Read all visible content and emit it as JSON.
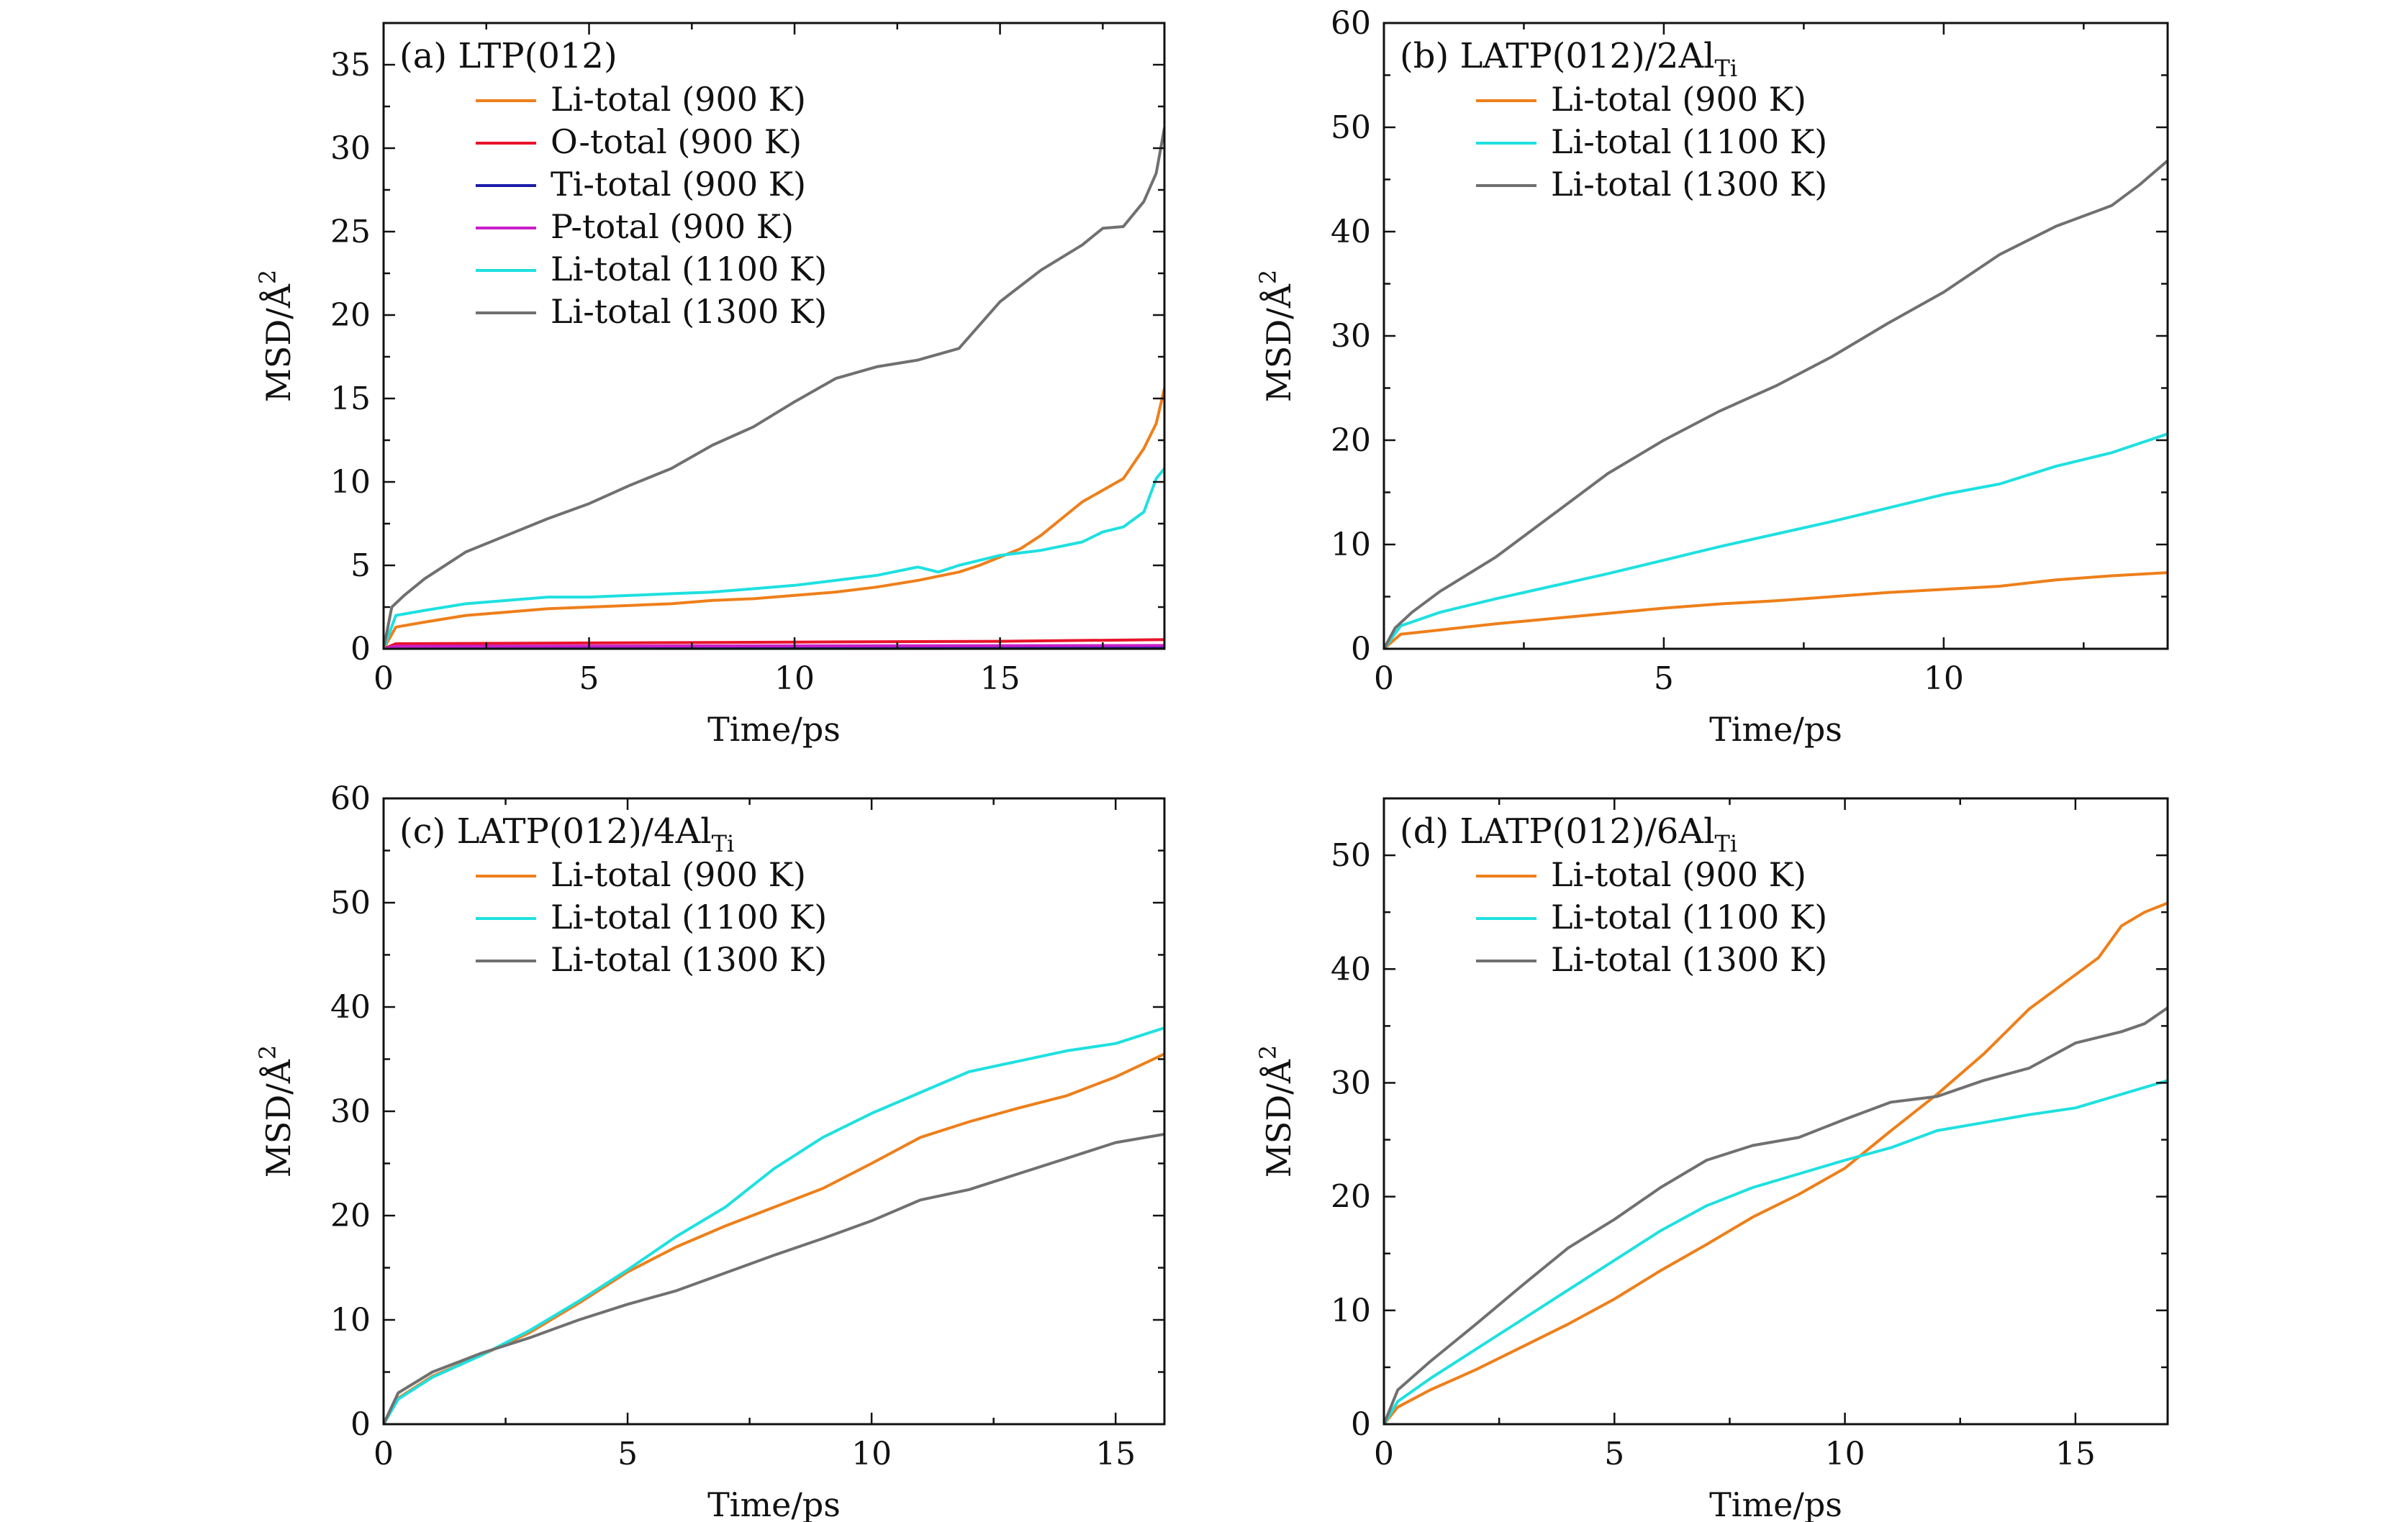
{
  "figure": {
    "panels": [
      "a",
      "b",
      "c",
      "d"
    ]
  },
  "chart_data": [
    {
      "id": "a",
      "type": "line",
      "panel_label": "(a)",
      "title_main": "LTP(012)",
      "title_sub": "",
      "xlabel": "Time/ps",
      "ylabel_main": "MSD/Å",
      "ylabel_sup": "2",
      "xlim": [
        0,
        19
      ],
      "ylim": [
        0,
        37.5
      ],
      "xticks": [
        0,
        5,
        10,
        15
      ],
      "yticks": [
        0,
        5,
        10,
        15,
        20,
        25,
        30,
        35
      ],
      "legend_position": "top-left",
      "series": [
        {
          "name": "Li-total (900 K)",
          "color": "#ee7f1a",
          "x": [
            0,
            0.3,
            1,
            2,
            3,
            4,
            5,
            6,
            7,
            8,
            9,
            10,
            11,
            12,
            13,
            14,
            14.5,
            15,
            15.5,
            16,
            16.5,
            17,
            17.5,
            18,
            18.5,
            18.8,
            19
          ],
          "y": [
            0,
            1.3,
            1.6,
            2.0,
            2.2,
            2.4,
            2.5,
            2.6,
            2.7,
            2.9,
            3.0,
            3.2,
            3.4,
            3.7,
            4.1,
            4.6,
            5.0,
            5.5,
            6.0,
            6.8,
            7.8,
            8.8,
            9.5,
            10.2,
            12.0,
            13.5,
            15.6
          ]
        },
        {
          "name": "O-total (900 K)",
          "color": "#e8142b",
          "x": [
            0,
            0.3,
            5,
            10,
            15,
            19
          ],
          "y": [
            0,
            0.3,
            0.35,
            0.4,
            0.45,
            0.55
          ]
        },
        {
          "name": "Ti-total (900 K)",
          "color": "#1c1ca8",
          "x": [
            0,
            0.3,
            19
          ],
          "y": [
            0,
            0.1,
            0.15
          ]
        },
        {
          "name": "P-total (900 K)",
          "color": "#c81fc8",
          "x": [
            0,
            0.3,
            19
          ],
          "y": [
            0,
            0.15,
            0.2
          ]
        },
        {
          "name": "Li-total (1100 K)",
          "color": "#1fe0e0",
          "x": [
            0,
            0.3,
            1,
            2,
            3,
            4,
            5,
            6,
            7,
            8,
            9,
            10,
            11,
            12,
            13,
            13.5,
            14,
            15,
            16,
            17,
            17.5,
            18,
            18.5,
            18.8,
            19
          ],
          "y": [
            0,
            2.0,
            2.3,
            2.7,
            2.9,
            3.1,
            3.1,
            3.2,
            3.3,
            3.4,
            3.6,
            3.8,
            4.1,
            4.4,
            4.9,
            4.6,
            5.0,
            5.6,
            5.9,
            6.4,
            7.0,
            7.3,
            8.2,
            10.2,
            10.8
          ]
        },
        {
          "name": "Li-total (1300 K)",
          "color": "#707070",
          "x": [
            0,
            0.2,
            0.5,
            1,
            2,
            3,
            4,
            5,
            6,
            7,
            8,
            9,
            10,
            11,
            12,
            13,
            14,
            15,
            16,
            17,
            17.5,
            18,
            18.5,
            18.8,
            19
          ],
          "y": [
            0,
            2.5,
            3.2,
            4.2,
            5.8,
            6.8,
            7.8,
            8.7,
            9.8,
            10.8,
            12.2,
            13.3,
            14.8,
            16.2,
            16.9,
            17.3,
            18.0,
            20.8,
            22.7,
            24.2,
            25.2,
            25.3,
            26.8,
            28.5,
            31.2
          ]
        }
      ]
    },
    {
      "id": "b",
      "type": "line",
      "panel_label": "(b)",
      "title_main": "LATP(012)/2Al",
      "title_sub": "Ti",
      "xlabel": "Time/ps",
      "ylabel_main": "MSD/Å",
      "ylabel_sup": "2",
      "xlim": [
        0,
        14
      ],
      "ylim": [
        0,
        60
      ],
      "xticks": [
        0,
        5,
        10
      ],
      "yticks": [
        0,
        10,
        20,
        30,
        40,
        50,
        60
      ],
      "legend_position": "top-left",
      "series": [
        {
          "name": "Li-total (900 K)",
          "color": "#ee7f1a",
          "x": [
            0,
            0.3,
            1,
            2,
            3,
            4,
            5,
            6,
            7,
            8,
            9,
            10,
            11,
            12,
            13,
            14
          ],
          "y": [
            0,
            1.4,
            1.8,
            2.4,
            2.9,
            3.4,
            3.9,
            4.3,
            4.6,
            5.0,
            5.4,
            5.7,
            6.0,
            6.6,
            7.0,
            7.3
          ]
        },
        {
          "name": "Li-total (1100 K)",
          "color": "#1fe0e0",
          "x": [
            0,
            0.3,
            1,
            2,
            3,
            4,
            5,
            6,
            7,
            8,
            9,
            10,
            11,
            12,
            13,
            14
          ],
          "y": [
            0,
            2.2,
            3.5,
            4.8,
            6.0,
            7.2,
            8.5,
            9.8,
            11.0,
            12.2,
            13.5,
            14.8,
            15.8,
            17.5,
            18.8,
            20.6
          ]
        },
        {
          "name": "Li-total (1300 K)",
          "color": "#707070",
          "x": [
            0,
            0.2,
            0.5,
            1,
            2,
            3,
            4,
            5,
            6,
            7,
            8,
            9,
            10,
            11,
            12,
            13,
            13.5,
            14
          ],
          "y": [
            0,
            2.0,
            3.5,
            5.5,
            8.8,
            12.8,
            16.8,
            20.0,
            22.8,
            25.2,
            28.0,
            31.2,
            34.2,
            37.8,
            40.5,
            42.5,
            44.5,
            46.8
          ]
        }
      ]
    },
    {
      "id": "c",
      "type": "line",
      "panel_label": "(c)",
      "title_main": "LATP(012)/4Al",
      "title_sub": "Ti",
      "xlabel": "Time/ps",
      "ylabel_main": "MSD/Å",
      "ylabel_sup": "2",
      "xlim": [
        0,
        16
      ],
      "ylim": [
        0,
        60
      ],
      "xticks": [
        0,
        5,
        10,
        15
      ],
      "yticks": [
        0,
        10,
        20,
        30,
        40,
        50,
        60
      ],
      "legend_position": "top-left",
      "series": [
        {
          "name": "Li-total (900 K)",
          "color": "#ee7f1a",
          "x": [
            0,
            0.3,
            1,
            2,
            3,
            4,
            5,
            6,
            7,
            8,
            9,
            10,
            11,
            12,
            13,
            14,
            15,
            16
          ],
          "y": [
            0,
            2.5,
            4.6,
            6.6,
            8.8,
            11.6,
            14.6,
            17.0,
            19.0,
            20.8,
            22.6,
            25.0,
            27.5,
            29.0,
            30.3,
            31.5,
            33.3,
            35.5
          ]
        },
        {
          "name": "Li-total (1100 K)",
          "color": "#1fe0e0",
          "x": [
            0,
            0.3,
            1,
            2,
            3,
            4,
            5,
            6,
            7,
            8,
            9,
            10,
            11,
            12,
            13,
            14,
            15,
            16
          ],
          "y": [
            0,
            2.4,
            4.5,
            6.6,
            9.0,
            11.8,
            14.8,
            18.0,
            20.8,
            24.5,
            27.5,
            29.8,
            31.8,
            33.8,
            34.8,
            35.8,
            36.5,
            38.0
          ]
        },
        {
          "name": "Li-total (1300 K)",
          "color": "#707070",
          "x": [
            0,
            0.3,
            1,
            2,
            3,
            4,
            5,
            6,
            7,
            8,
            9,
            10,
            11,
            12,
            13,
            14,
            15,
            16
          ],
          "y": [
            0,
            3.0,
            5.0,
            6.8,
            8.3,
            10.0,
            11.5,
            12.8,
            14.5,
            16.2,
            17.8,
            19.5,
            21.5,
            22.5,
            24.0,
            25.5,
            27.0,
            27.8
          ]
        }
      ]
    },
    {
      "id": "d",
      "type": "line",
      "panel_label": "(d)",
      "title_main": "LATP(012)/6Al",
      "title_sub": "Ti",
      "xlabel": "Time/ps",
      "ylabel_main": "MSD/Å",
      "ylabel_sup": "2",
      "xlim": [
        0,
        17
      ],
      "ylim": [
        0,
        55
      ],
      "xticks": [
        0,
        5,
        10,
        15
      ],
      "yticks": [
        0,
        10,
        20,
        30,
        40,
        50
      ],
      "legend_position": "top-left",
      "series": [
        {
          "name": "Li-total (900 K)",
          "color": "#ee7f1a",
          "x": [
            0,
            0.3,
            1,
            2,
            3,
            4,
            5,
            6,
            7,
            8,
            9,
            10,
            11,
            12,
            13,
            14,
            15,
            15.5,
            16,
            16.5,
            17
          ],
          "y": [
            0,
            1.5,
            3.0,
            4.8,
            6.8,
            8.8,
            11.0,
            13.5,
            15.8,
            18.2,
            20.2,
            22.5,
            25.8,
            29.0,
            32.5,
            36.5,
            39.5,
            41.0,
            43.8,
            45.0,
            45.8
          ]
        },
        {
          "name": "Li-total (1100 K)",
          "color": "#1fe0e0",
          "x": [
            0,
            0.3,
            1,
            2,
            3,
            4,
            5,
            6,
            7,
            8,
            9,
            10,
            11,
            12,
            13,
            14,
            15,
            16,
            17
          ],
          "y": [
            0,
            2.0,
            4.0,
            6.6,
            9.2,
            11.8,
            14.4,
            17.0,
            19.2,
            20.8,
            22.0,
            23.2,
            24.3,
            25.8,
            26.5,
            27.2,
            27.8,
            29.0,
            30.2
          ]
        },
        {
          "name": "Li-total (1300 K)",
          "color": "#707070",
          "x": [
            0,
            0.3,
            1,
            2,
            3,
            4,
            5,
            6,
            7,
            8,
            9,
            10,
            11,
            12,
            13,
            14,
            15,
            16,
            16.5,
            17
          ],
          "y": [
            0,
            3.0,
            5.5,
            8.8,
            12.2,
            15.5,
            18.0,
            20.8,
            23.2,
            24.5,
            25.2,
            26.8,
            28.3,
            28.8,
            30.2,
            31.3,
            33.5,
            34.5,
            35.2,
            36.6
          ]
        }
      ]
    }
  ]
}
